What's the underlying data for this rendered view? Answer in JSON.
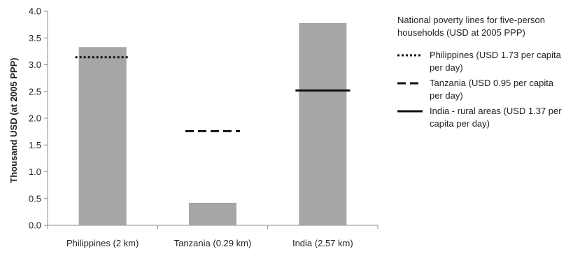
{
  "chart_data": {
    "type": "bar",
    "title": "",
    "xlabel": "",
    "ylabel": "Thousand USD (at 2005 PPP)",
    "ylim": [
      0,
      4
    ],
    "yticks": [
      "0.0",
      "0.5",
      "1.0",
      "1.5",
      "2.0",
      "2.5",
      "3.0",
      "3.5",
      "4.0"
    ],
    "categories": [
      "Philippines (2 km)",
      "Tanzania (0.29 km)",
      "India (2.57 km)"
    ],
    "values": [
      3.33,
      0.42,
      3.78
    ],
    "bar_color": "#a6a6a6",
    "poverty_lines": [
      {
        "category": "Philippines (2 km)",
        "value": 3.14,
        "style": "dotted"
      },
      {
        "category": "Tanzania (0.29 km)",
        "value": 1.76,
        "style": "dashed"
      },
      {
        "category": "India (2.57 km)",
        "value": 2.52,
        "style": "solid"
      }
    ],
    "line_color": "#111111",
    "grid": false,
    "legend_placement": "right",
    "legend": {
      "title": "National poverty lines for five-person households (USD at 2005 PPP)",
      "items": [
        {
          "label": "Philippines (USD 1.73 per capita per day)",
          "style": "dotted"
        },
        {
          "label": "Tanzania (USD 0.95 per capita per day)",
          "style": "dashed"
        },
        {
          "label": "India - rural areas (USD 1.37 per capita per day)",
          "style": "solid"
        }
      ]
    }
  }
}
